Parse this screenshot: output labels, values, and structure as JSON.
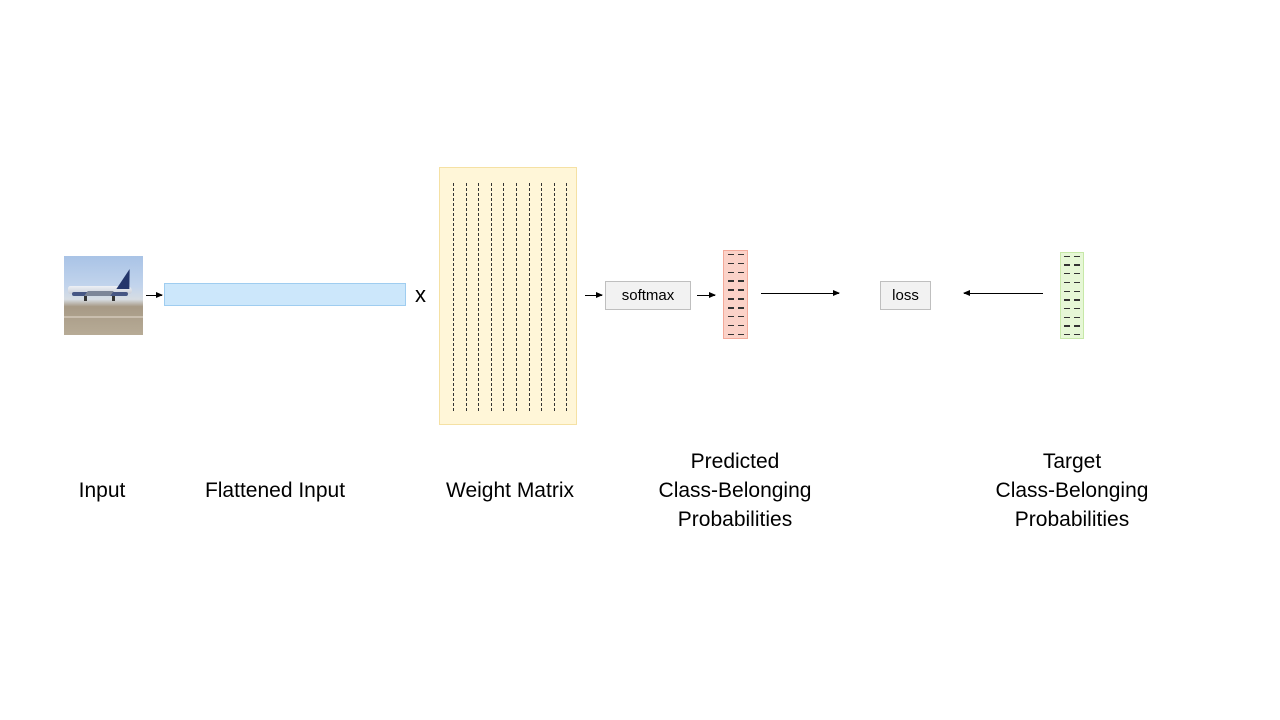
{
  "labels": {
    "input": "Input",
    "flattened_input": "Flattened Input",
    "weight_matrix": "Weight Matrix",
    "predicted": [
      "Predicted",
      "Class-Belonging",
      "Probabilities"
    ],
    "target": [
      "Target",
      "Class-Belonging",
      "Probabilities"
    ]
  },
  "operators": {
    "multiply": "x",
    "softmax": "softmax",
    "loss": "loss"
  },
  "colors": {
    "flattened_input_fill": "#cce7fb",
    "weight_matrix_fill": "#fff6d8",
    "predicted_fill": "#fbd2c8",
    "target_fill": "#e6f7d6",
    "operator_box_fill": "#f2f2f2"
  },
  "icons": {
    "input_image": "airplane-photo"
  },
  "structure": {
    "weight_matrix_columns": 10,
    "probability_entries": 10
  }
}
